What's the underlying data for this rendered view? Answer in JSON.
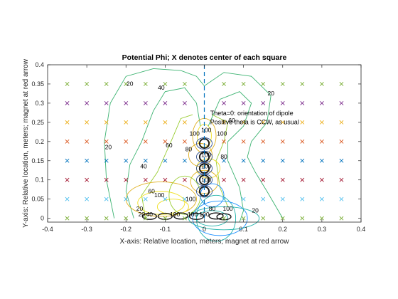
{
  "chart_data": {
    "type": "contour",
    "title": "Potential Phi;  X denotes center of each square",
    "xlabel": "X-axis: Relative location, meters;  magnet at red arrow",
    "ylabel": "Y-axis: Relative location, meters;  magnet at red arrow",
    "xlim": [
      -0.4,
      0.4
    ],
    "ylim": [
      -0.01,
      0.4
    ],
    "xticks": [
      -0.4,
      -0.3,
      -0.2,
      -0.1,
      0,
      0.1,
      0.2,
      0.3,
      0.4
    ],
    "yticks": [
      0,
      0.05,
      0.1,
      0.15,
      0.2,
      0.25,
      0.3,
      0.35,
      0.4
    ],
    "xtick_labels": [
      "-0.4",
      "-0.3",
      "-0.2",
      "-0.1",
      "0",
      "0.1",
      "0.2",
      "0.3",
      "0.4"
    ],
    "ytick_labels": [
      "0",
      "0.05",
      "0.1",
      "0.15",
      "0.2",
      "0.25",
      "0.3",
      "0.35",
      "0.4"
    ],
    "annotations": [
      "Theta=0: orientation of dipole",
      "Positive theta is CCW, as usual"
    ],
    "contour_labels": [
      {
        "text": "20",
        "x": -0.19,
        "y": 0.345
      },
      {
        "text": "20",
        "x": -0.245,
        "y": 0.18
      },
      {
        "text": "20",
        "x": 0.17,
        "y": 0.32
      },
      {
        "text": "20",
        "x": 0.13,
        "y": 0.015
      },
      {
        "text": "20",
        "x": -0.165,
        "y": 0.02
      },
      {
        "text": "20",
        "x": -0.16,
        "y": 0.005
      },
      {
        "text": "40",
        "x": -0.11,
        "y": 0.335
      },
      {
        "text": "40",
        "x": -0.155,
        "y": 0.13
      },
      {
        "text": "60",
        "x": -0.135,
        "y": 0.065
      },
      {
        "text": "60",
        "x": -0.09,
        "y": 0.185
      },
      {
        "text": "60",
        "x": 0.07,
        "y": 0.25
      },
      {
        "text": "100",
        "x": -0.115,
        "y": 0.055
      },
      {
        "text": "100",
        "x": -0.035,
        "y": 0.045
      },
      {
        "text": "100",
        "x": 0.0,
        "y": 0.005
      },
      {
        "text": "100",
        "x": -0.025,
        "y": 0.215
      },
      {
        "text": "100",
        "x": 0.005,
        "y": 0.225
      },
      {
        "text": "100",
        "x": 0.005,
        "y": 0.16
      },
      {
        "text": "100",
        "x": 0.005,
        "y": 0.13
      },
      {
        "text": "100",
        "x": 0.005,
        "y": 0.095
      },
      {
        "text": "100",
        "x": 0.045,
        "y": 0.215
      },
      {
        "text": "80",
        "x": -0.04,
        "y": 0.175
      },
      {
        "text": "80",
        "x": 0.05,
        "y": 0.155
      },
      {
        "text": "80",
        "x": 0.02,
        "y": 0.02
      },
      {
        "text": "100",
        "x": 0.06,
        "y": 0.02
      },
      {
        "text": "100",
        "x": -0.03,
        "y": 0.005
      },
      {
        "text": "100",
        "x": -0.075,
        "y": 0.005
      },
      {
        "text": "40",
        "x": -0.14,
        "y": 0.005
      }
    ],
    "marker_x": [
      -0.35,
      -0.3,
      -0.25,
      -0.2,
      -0.15,
      -0.1,
      -0.05,
      0.05,
      0.1,
      0.15,
      0.2,
      0.25,
      0.3,
      0.35
    ],
    "marker_y": [
      0,
      0.05,
      0.1,
      0.15,
      0.2,
      0.25,
      0.3,
      0.35
    ],
    "marker_row_colors": [
      "#77AC30",
      "#4DBEEE",
      "#A2142F",
      "#0072BD",
      "#D95319",
      "#EDB120",
      "#7E2F8E",
      "#77AC30"
    ],
    "contour_colors": [
      "#3CB371",
      "#9ACD32",
      "#E0B020",
      "#F0E020",
      "#1E90FF",
      "#20B2AA",
      "#2F4F8F"
    ],
    "dashed_line_x": 0,
    "grid": false
  }
}
